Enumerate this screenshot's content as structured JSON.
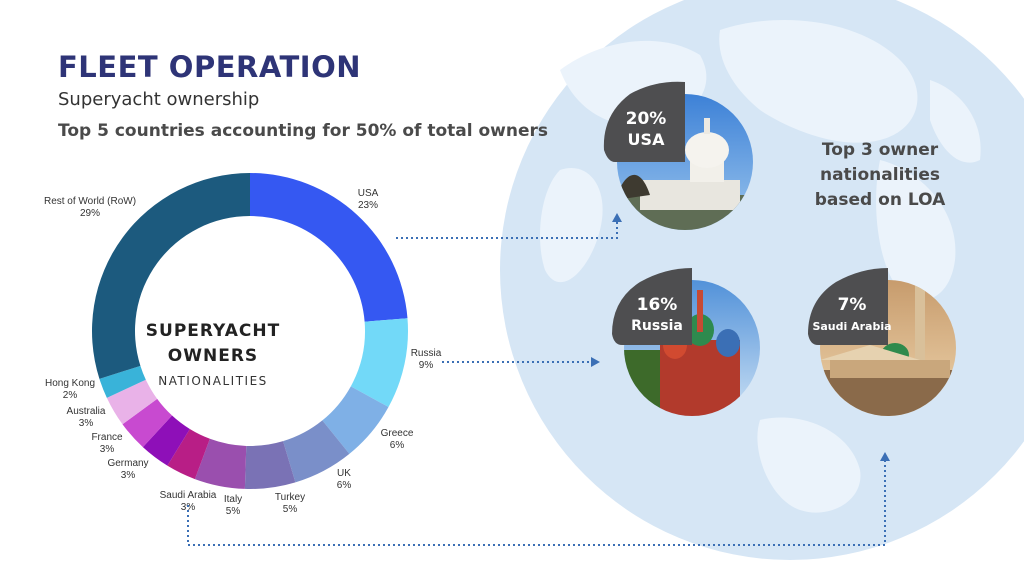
{
  "header": {
    "title": "FLEET OPERATION",
    "subtitle": "Superyacht ownership",
    "tagline": "Top 5 countries accounting for 50% of total owners"
  },
  "center": {
    "line1": "SUPERYACHT",
    "line2": "OWNERS",
    "line3": "NATIONALITIES"
  },
  "right_heading": {
    "line1": "Top 3 owner",
    "line2": "nationalities",
    "line3": "based on LOA"
  },
  "top3": [
    {
      "pct": "20%",
      "country": "USA",
      "photo": "us-capitol-icon"
    },
    {
      "pct": "16%",
      "country": "Russia",
      "photo": "st-basils-cathedral-icon"
    },
    {
      "pct": "7%",
      "country": "Saudi Arabia",
      "photo": "mosque-icon"
    }
  ],
  "colors": {
    "title": "#2e3477",
    "globe": "#d3e4f4",
    "connector": "#3b6fb5",
    "badge": "#4e4e50"
  },
  "chart_data": {
    "type": "pie",
    "categories": [
      "USA",
      "Russia",
      "Greece",
      "UK",
      "Turkey",
      "Italy",
      "Saudi Arabia",
      "Germany",
      "France",
      "Australia",
      "Hong Kong",
      "Rest of World (RoW)"
    ],
    "values": [
      23,
      9,
      6,
      6,
      5,
      5,
      3,
      3,
      3,
      3,
      2,
      29
    ],
    "labels": [
      "23%",
      "9%",
      "6%",
      "6%",
      "5%",
      "5%",
      "3%",
      "3%",
      "3%",
      "3%",
      "2%",
      "29%"
    ],
    "colors": [
      "#3558f2",
      "#72d9f8",
      "#7fb0e6",
      "#7a8fc9",
      "#7a72b5",
      "#9a4fae",
      "#b81e86",
      "#8e0fb8",
      "#c84ad0",
      "#e9b2e8",
      "#39b3d9",
      "#1c5a7e",
      "#14146e"
    ]
  }
}
